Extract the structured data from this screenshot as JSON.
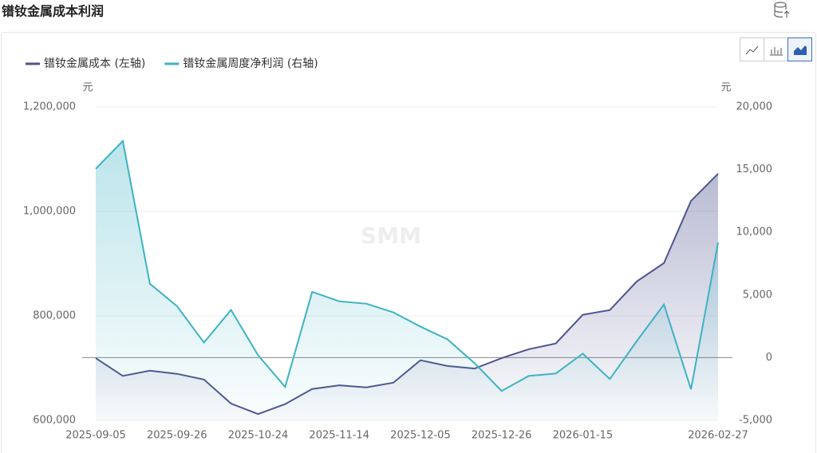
{
  "chart_data": {
    "type": "area",
    "title": "镨钕金属成本利润",
    "watermark": "SMM",
    "y_unit": "元",
    "y2_unit": "元",
    "categories": [
      "2025-09-05",
      null,
      null,
      "2025-09-26",
      null,
      null,
      "2025-10-24",
      null,
      null,
      "2025-11-14",
      null,
      null,
      "2025-12-05",
      null,
      null,
      "2025-12-26",
      null,
      null,
      "2026-01-15",
      null,
      null,
      null,
      null,
      "2026-02-27"
    ],
    "series": [
      {
        "name": "镨钕金属成本 (左轴)",
        "color": "#4e5490",
        "axis": "y",
        "values": [
          719000,
          685000,
          695000,
          689000,
          678000,
          632000,
          612000,
          631000,
          660000,
          667000,
          663000,
          672000,
          715000,
          704000,
          699000,
          719000,
          736000,
          747000,
          802000,
          811000,
          866000,
          901000,
          1020000,
          1072000
        ]
      },
      {
        "name": "镨钕金属周度净利润 (右轴)",
        "color": "#3db3c4",
        "axis": "y2",
        "values": [
          15060,
          17280,
          5890,
          4110,
          1200,
          3800,
          190,
          -2340,
          5250,
          4490,
          4300,
          3610,
          2470,
          1460,
          -440,
          -2660,
          -1460,
          -1270,
          320,
          -1710,
          1330,
          4240,
          -2530,
          9180
        ]
      }
    ],
    "ylim": [
      600000,
      1200000
    ],
    "yticks": [
      {
        "value": 600000,
        "label": "600,000"
      },
      {
        "value": 800000,
        "label": "800,000"
      },
      {
        "value": 1000000,
        "label": "1,000,000"
      },
      {
        "value": 1200000,
        "label": "1,200,000"
      }
    ],
    "y2lim": [
      -5000,
      20000
    ],
    "y2ticks": [
      {
        "value": -5000,
        "label": "-5,000"
      },
      0,
      {
        "value": 5000,
        "label": "5,000"
      },
      {
        "value": 10000,
        "label": "10,000"
      },
      {
        "value": 15000,
        "label": "15,000"
      },
      {
        "value": 20000,
        "label": "20,000"
      }
    ],
    "grid": true,
    "legend": "top-left"
  }
}
